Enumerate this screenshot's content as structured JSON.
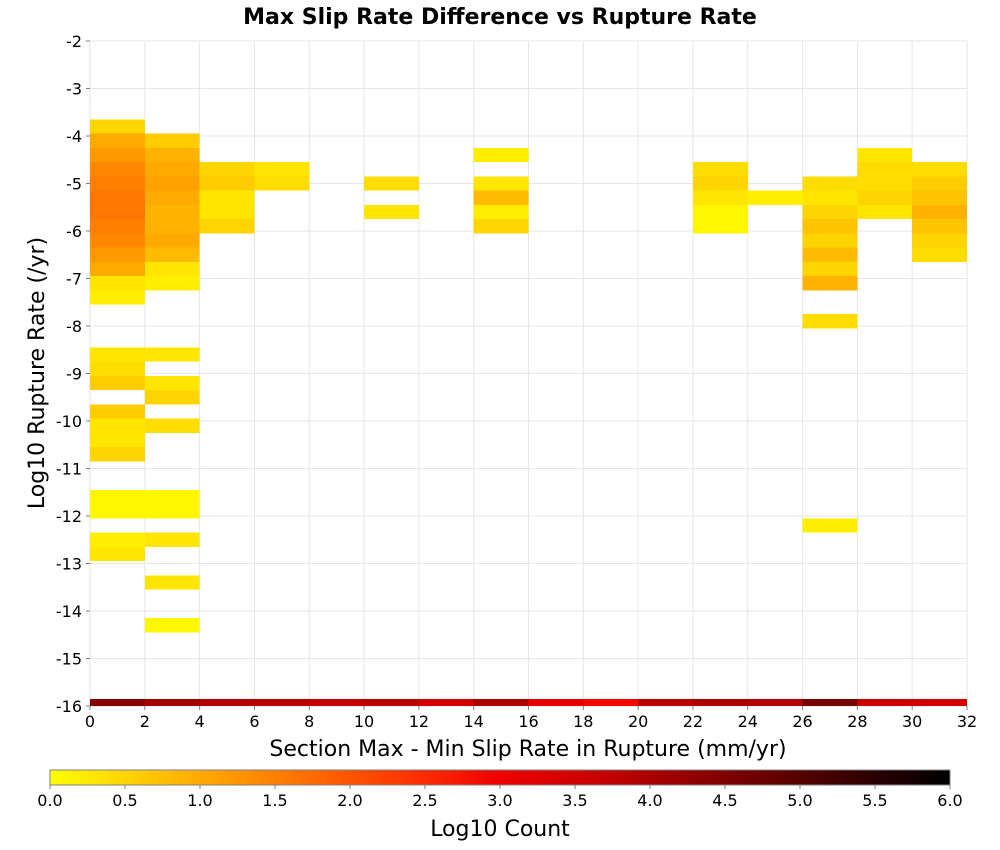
{
  "chart_data": {
    "type": "heatmap",
    "title": "Max Slip Rate Difference vs Rupture Rate",
    "xlabel": "Section Max - Min Slip Rate in Rupture (mm/yr)",
    "ylabel": "Log10 Rupture Rate (/yr)",
    "xlim": [
      0,
      32
    ],
    "ylim": [
      -16,
      -2
    ],
    "x_ticks": [
      "0",
      "2",
      "4",
      "6",
      "8",
      "10",
      "12",
      "14",
      "16",
      "18",
      "20",
      "22",
      "24",
      "26",
      "28",
      "30",
      "32"
    ],
    "y_ticks": [
      "-2",
      "-3",
      "-4",
      "-5",
      "-6",
      "-7",
      "-8",
      "-9",
      "-10",
      "-11",
      "-12",
      "-13",
      "-14",
      "-15",
      "-16"
    ],
    "grid": true,
    "colorbar": {
      "label": "Log10 Count",
      "range": [
        0,
        6
      ],
      "ticks": [
        "0.0",
        "0.5",
        "1.0",
        "1.5",
        "2.0",
        "2.5",
        "3.0",
        "3.5",
        "4.0",
        "4.5",
        "5.0",
        "5.5",
        "6.0"
      ],
      "stops": [
        "#ffff00",
        "#ffcc00",
        "#ff9900",
        "#ff6600",
        "#ff3300",
        "#ee0000",
        "#cc0000",
        "#990000",
        "#660000",
        "#330000",
        "#000000"
      ]
    },
    "bins": {
      "x_width": 2,
      "y_height": 0.3,
      "cells": [
        {
          "x": 0,
          "y": -3.8,
          "v": 0.5
        },
        {
          "x": 0,
          "y": -4.1,
          "v": 1.0
        },
        {
          "x": 0,
          "y": -4.4,
          "v": 1.2
        },
        {
          "x": 0,
          "y": -4.7,
          "v": 1.4
        },
        {
          "x": 0,
          "y": -5.0,
          "v": 1.5
        },
        {
          "x": 0,
          "y": -5.3,
          "v": 1.6
        },
        {
          "x": 0,
          "y": -5.6,
          "v": 1.6
        },
        {
          "x": 0,
          "y": -5.9,
          "v": 1.5
        },
        {
          "x": 0,
          "y": -6.2,
          "v": 1.4
        },
        {
          "x": 0,
          "y": -6.5,
          "v": 1.2
        },
        {
          "x": 0,
          "y": -6.8,
          "v": 1.0
        },
        {
          "x": 0,
          "y": -7.1,
          "v": 0.3
        },
        {
          "x": 0,
          "y": -7.4,
          "v": 0.2
        },
        {
          "x": 0,
          "y": -8.6,
          "v": 0.3
        },
        {
          "x": 0,
          "y": -8.9,
          "v": 0.4
        },
        {
          "x": 0,
          "y": -9.2,
          "v": 0.6
        },
        {
          "x": 0,
          "y": -9.8,
          "v": 0.6
        },
        {
          "x": 0,
          "y": -10.1,
          "v": 0.3
        },
        {
          "x": 0,
          "y": -10.4,
          "v": 0.3
        },
        {
          "x": 0,
          "y": -10.7,
          "v": 0.5
        },
        {
          "x": 0,
          "y": -11.6,
          "v": 0.1
        },
        {
          "x": 0,
          "y": -11.9,
          "v": 0.1
        },
        {
          "x": 0,
          "y": -12.5,
          "v": 0.2
        },
        {
          "x": 0,
          "y": -12.8,
          "v": 0.3
        },
        {
          "x": 2,
          "y": -4.1,
          "v": 0.6
        },
        {
          "x": 2,
          "y": -4.4,
          "v": 0.9
        },
        {
          "x": 2,
          "y": -4.7,
          "v": 1.0
        },
        {
          "x": 2,
          "y": -5.0,
          "v": 1.1
        },
        {
          "x": 2,
          "y": -5.3,
          "v": 1.0
        },
        {
          "x": 2,
          "y": -5.6,
          "v": 0.9
        },
        {
          "x": 2,
          "y": -5.9,
          "v": 0.9
        },
        {
          "x": 2,
          "y": -6.2,
          "v": 1.0
        },
        {
          "x": 2,
          "y": -6.5,
          "v": 0.8
        },
        {
          "x": 2,
          "y": -6.8,
          "v": 0.3
        },
        {
          "x": 2,
          "y": -7.1,
          "v": 0.2
        },
        {
          "x": 2,
          "y": -8.6,
          "v": 0.3
        },
        {
          "x": 2,
          "y": -9.2,
          "v": 0.3
        },
        {
          "x": 2,
          "y": -9.5,
          "v": 0.5
        },
        {
          "x": 2,
          "y": -10.1,
          "v": 0.4
        },
        {
          "x": 2,
          "y": -11.6,
          "v": 0.1
        },
        {
          "x": 2,
          "y": -11.9,
          "v": 0.1
        },
        {
          "x": 2,
          "y": -12.5,
          "v": 0.3
        },
        {
          "x": 2,
          "y": -13.4,
          "v": 0.3
        },
        {
          "x": 2,
          "y": -14.3,
          "v": 0.1
        },
        {
          "x": 4,
          "y": -4.7,
          "v": 0.5
        },
        {
          "x": 4,
          "y": -5.0,
          "v": 0.6
        },
        {
          "x": 4,
          "y": -5.3,
          "v": 0.3
        },
        {
          "x": 4,
          "y": -5.6,
          "v": 0.3
        },
        {
          "x": 4,
          "y": -5.9,
          "v": 0.5
        },
        {
          "x": 6,
          "y": -4.7,
          "v": 0.3
        },
        {
          "x": 6,
          "y": -5.0,
          "v": 0.4
        },
        {
          "x": 10,
          "y": -5.0,
          "v": 0.4
        },
        {
          "x": 10,
          "y": -5.6,
          "v": 0.3
        },
        {
          "x": 14,
          "y": -4.4,
          "v": 0.2
        },
        {
          "x": 14,
          "y": -5.0,
          "v": 0.3
        },
        {
          "x": 14,
          "y": -5.3,
          "v": 0.8
        },
        {
          "x": 14,
          "y": -5.6,
          "v": 0.2
        },
        {
          "x": 14,
          "y": -5.9,
          "v": 0.5
        },
        {
          "x": 22,
          "y": -4.7,
          "v": 0.4
        },
        {
          "x": 22,
          "y": -5.0,
          "v": 0.5
        },
        {
          "x": 22,
          "y": -5.3,
          "v": 0.3
        },
        {
          "x": 22,
          "y": -5.6,
          "v": 0.1
        },
        {
          "x": 22,
          "y": -5.9,
          "v": 0.1
        },
        {
          "x": 24,
          "y": -5.3,
          "v": 0.2
        },
        {
          "x": 26,
          "y": -5.0,
          "v": 0.4
        },
        {
          "x": 26,
          "y": -5.3,
          "v": 0.3
        },
        {
          "x": 26,
          "y": -5.6,
          "v": 0.5
        },
        {
          "x": 26,
          "y": -5.9,
          "v": 0.7
        },
        {
          "x": 26,
          "y": -6.2,
          "v": 0.5
        },
        {
          "x": 26,
          "y": -6.5,
          "v": 0.8
        },
        {
          "x": 26,
          "y": -6.8,
          "v": 0.5
        },
        {
          "x": 26,
          "y": -7.1,
          "v": 0.9
        },
        {
          "x": 26,
          "y": -7.9,
          "v": 0.4
        },
        {
          "x": 26,
          "y": -12.2,
          "v": 0.2
        },
        {
          "x": 28,
          "y": -4.4,
          "v": 0.3
        },
        {
          "x": 28,
          "y": -4.7,
          "v": 0.4
        },
        {
          "x": 28,
          "y": -5.0,
          "v": 0.4
        },
        {
          "x": 28,
          "y": -5.3,
          "v": 0.5
        },
        {
          "x": 28,
          "y": -5.6,
          "v": 0.3
        },
        {
          "x": 30,
          "y": -4.7,
          "v": 0.4
        },
        {
          "x": 30,
          "y": -5.0,
          "v": 0.6
        },
        {
          "x": 30,
          "y": -5.3,
          "v": 0.7
        },
        {
          "x": 30,
          "y": -5.6,
          "v": 0.9
        },
        {
          "x": 30,
          "y": -5.9,
          "v": 0.7
        },
        {
          "x": 30,
          "y": -6.2,
          "v": 0.5
        },
        {
          "x": 30,
          "y": -6.5,
          "v": 0.4
        }
      ]
    },
    "total_row": {
      "y": -16,
      "values": [
        {
          "x": 0,
          "v": 4.4
        },
        {
          "x": 2,
          "v": 4.1
        },
        {
          "x": 4,
          "v": 3.9
        },
        {
          "x": 6,
          "v": 3.8
        },
        {
          "x": 8,
          "v": 3.7
        },
        {
          "x": 10,
          "v": 3.8
        },
        {
          "x": 12,
          "v": 3.5
        },
        {
          "x": 14,
          "v": 4.0
        },
        {
          "x": 16,
          "v": 3.1
        },
        {
          "x": 18,
          "v": 2.9
        },
        {
          "x": 20,
          "v": 3.8
        },
        {
          "x": 22,
          "v": 4.0
        },
        {
          "x": 24,
          "v": 3.9
        },
        {
          "x": 26,
          "v": 4.6
        },
        {
          "x": 28,
          "v": 3.6
        },
        {
          "x": 30,
          "v": 3.5
        }
      ]
    }
  }
}
